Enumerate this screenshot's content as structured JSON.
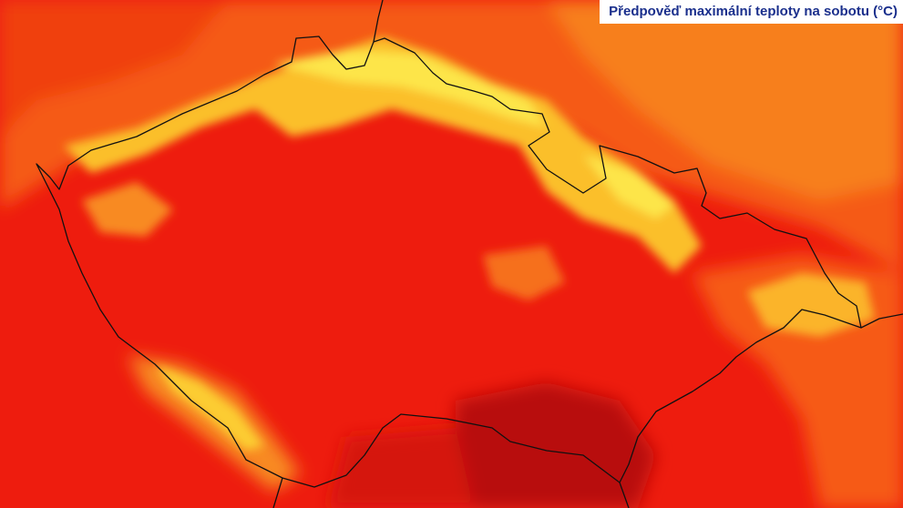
{
  "header": {
    "title": "Předpověď maximální teploty na sobotu (°C)"
  }
}
